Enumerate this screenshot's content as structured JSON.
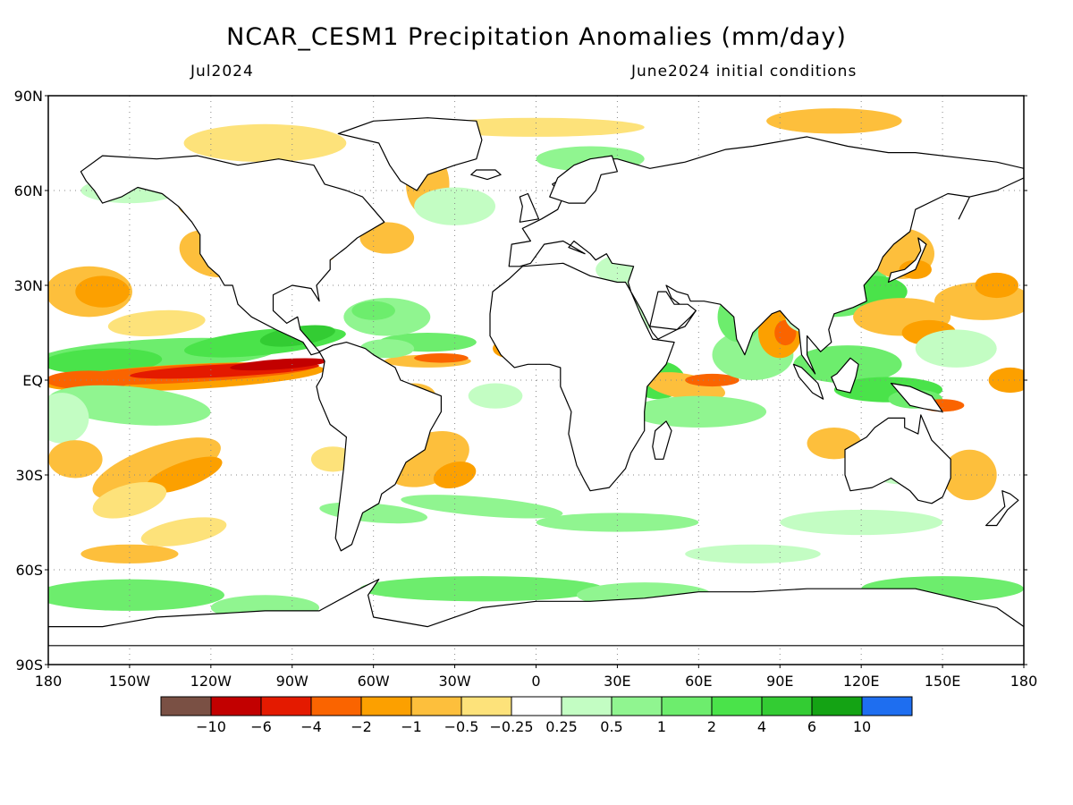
{
  "header": {
    "title": "NCAR_CESM1 Precipitation Anomalies (mm/day)",
    "valid_month": "Jul2024",
    "init_conditions": "June2024 initial conditions"
  },
  "map": {
    "projection": "equirectangular",
    "lon_range": [
      -180,
      180
    ],
    "lat_range": [
      -90,
      90
    ],
    "grid": "dotted",
    "lat_ticks": [
      {
        "value": 90,
        "label": "90N"
      },
      {
        "value": 60,
        "label": "60N"
      },
      {
        "value": 30,
        "label": "30N"
      },
      {
        "value": 0,
        "label": "EQ"
      },
      {
        "value": -30,
        "label": "30S"
      },
      {
        "value": -60,
        "label": "60S"
      },
      {
        "value": -90,
        "label": "90S"
      }
    ],
    "lon_ticks": [
      {
        "value": -180,
        "label": "180"
      },
      {
        "value": -150,
        "label": "150W"
      },
      {
        "value": -120,
        "label": "120W"
      },
      {
        "value": -90,
        "label": "90W"
      },
      {
        "value": -60,
        "label": "60W"
      },
      {
        "value": -30,
        "label": "30W"
      },
      {
        "value": 0,
        "label": "0"
      },
      {
        "value": 30,
        "label": "30E"
      },
      {
        "value": 60,
        "label": "60E"
      },
      {
        "value": 90,
        "label": "90E"
      },
      {
        "value": 120,
        "label": "120E"
      },
      {
        "value": 150,
        "label": "150E"
      },
      {
        "value": 180,
        "label": "180"
      }
    ]
  },
  "colorbar": {
    "colors": [
      "#7a5044",
      "#c20000",
      "#e41a00",
      "#fa6400",
      "#fca000",
      "#fdbf3c",
      "#fde27a",
      "#ffffff",
      "#c3fdc3",
      "#90f590",
      "#6ded6d",
      "#4ae34a",
      "#33cc33",
      "#14a314",
      "#1e6ef0"
    ],
    "labels": [
      "-10",
      "-6",
      "-4",
      "-2",
      "-1",
      "-0.5",
      "-0.25",
      "0.25",
      "0.5",
      "1",
      "2",
      "4",
      "6",
      "10"
    ]
  },
  "land_color": "#ffffff",
  "coast_color": "#000000"
}
